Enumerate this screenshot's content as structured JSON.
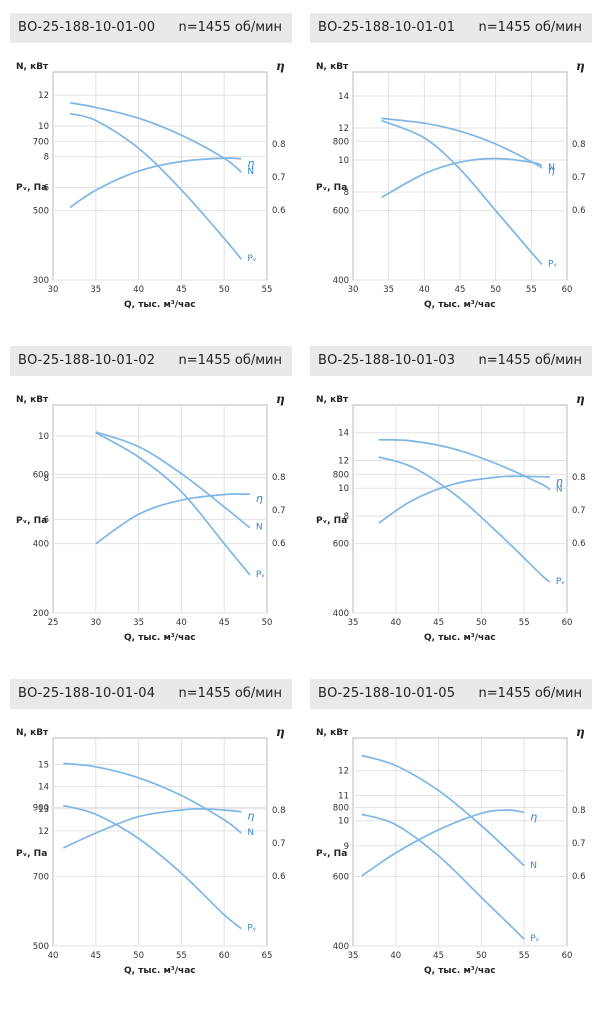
{
  "labels": {
    "n_axis": "N, кВт",
    "p_axis": "Pᵥ, Па",
    "q_axis": "Q, тыс. м³/час",
    "eta": "η",
    "curve_n": "N",
    "curve_eta": "η",
    "curve_p": "Pᵥ"
  },
  "colors": {
    "curve": "#7eb6e6",
    "grid": "#e2e2e2",
    "header_bg": "#e9e9e9"
  },
  "chart_data": [
    {
      "type": "line",
      "title": "ВО-25-188-10-01-00",
      "speed": "n=1455 об/мин",
      "x_ticks": [
        30,
        35,
        40,
        45,
        50,
        55
      ],
      "xlim": [
        30,
        55
      ],
      "n_ticks": [
        6,
        8,
        10,
        12
      ],
      "n_range": [
        0,
        13.5
      ],
      "p_ticks": [
        300,
        500,
        700
      ],
      "p_range": [
        300,
        900
      ],
      "eta_ticks": [
        0.6,
        0.7,
        0.8
      ],
      "eta_range": [
        0.6,
        0.8
      ],
      "series": [
        {
          "name": "N",
          "x": [
            32,
            35,
            40,
            45,
            50,
            52
          ],
          "y": [
            11.5,
            11.2,
            10.5,
            9.4,
            7.9,
            7.0
          ]
        },
        {
          "name": "η",
          "x": [
            32,
            35,
            40,
            45,
            50,
            52
          ],
          "y": [
            0.608,
            0.66,
            0.718,
            0.747,
            0.757,
            0.755
          ]
        },
        {
          "name": "Pᵥ",
          "x": [
            32,
            35,
            40,
            45,
            50,
            52
          ],
          "y": [
            780,
            760,
            680,
            560,
            420,
            360
          ]
        }
      ]
    },
    {
      "type": "line",
      "title": "ВО-25-188-10-01-01",
      "speed": "n=1455 об/мин",
      "x_ticks": [
        30,
        35,
        40,
        45,
        50,
        55,
        60
      ],
      "xlim": [
        30,
        60
      ],
      "n_ticks": [
        8,
        10,
        12,
        14
      ],
      "n_range": [
        2.5,
        15.5
      ],
      "p_ticks": [
        400,
        600,
        800
      ],
      "p_range": [
        400,
        1000
      ],
      "eta_ticks": [
        0.6,
        0.7,
        0.8
      ],
      "eta_range": [
        0.6,
        0.8
      ],
      "series": [
        {
          "name": "N",
          "x": [
            34,
            40,
            45,
            50,
            55,
            56.5
          ],
          "y": [
            12.6,
            12.3,
            11.8,
            11.0,
            9.9,
            9.5
          ]
        },
        {
          "name": "η",
          "x": [
            34,
            40,
            45,
            50,
            55,
            56.5
          ],
          "y": [
            0.638,
            0.71,
            0.745,
            0.756,
            0.745,
            0.735
          ]
        },
        {
          "name": "Pᵥ",
          "x": [
            34,
            40,
            45,
            50,
            55,
            56.5
          ],
          "y": [
            860,
            810,
            720,
            600,
            480,
            445
          ]
        }
      ]
    },
    {
      "type": "line",
      "title": "ВО-25-188-10-01-02",
      "speed": "n=1455 об/мин",
      "x_ticks": [
        25,
        30,
        35,
        40,
        45,
        50
      ],
      "xlim": [
        25,
        50
      ],
      "n_ticks": [
        6,
        8,
        10
      ],
      "n_range": [
        1.5,
        11.5
      ],
      "p_ticks": [
        200,
        400,
        600
      ],
      "p_range": [
        200,
        800
      ],
      "eta_ticks": [
        0.6,
        0.7,
        0.8
      ],
      "eta_range": [
        0.6,
        0.8
      ],
      "series": [
        {
          "name": "N",
          "x": [
            30,
            35,
            40,
            45,
            48
          ],
          "y": [
            10.2,
            9.5,
            8.2,
            6.6,
            5.6
          ]
        },
        {
          "name": "η",
          "x": [
            30,
            35,
            40,
            45,
            48
          ],
          "y": [
            0.598,
            0.687,
            0.73,
            0.747,
            0.748
          ]
        },
        {
          "name": "Pᵥ",
          "x": [
            30,
            35,
            40,
            45,
            48
          ],
          "y": [
            720,
            650,
            550,
            400,
            310
          ]
        }
      ]
    },
    {
      "type": "line",
      "title": "ВО-25-188-10-01-03",
      "speed": "n=1455 об/мин",
      "x_ticks": [
        35,
        40,
        45,
        50,
        55,
        60
      ],
      "xlim": [
        35,
        60
      ],
      "n_ticks": [
        8,
        10,
        12,
        14
      ],
      "n_range": [
        1,
        16
      ],
      "p_ticks": [
        400,
        600,
        800
      ],
      "p_range": [
        400,
        1000
      ],
      "eta_ticks": [
        0.6,
        0.7,
        0.8
      ],
      "eta_range": [
        0.6,
        0.8
      ],
      "series": [
        {
          "name": "N",
          "x": [
            38,
            42,
            47,
            52,
            57,
            58
          ],
          "y": [
            13.5,
            13.4,
            12.8,
            11.7,
            10.3,
            9.9
          ]
        },
        {
          "name": "η",
          "x": [
            38,
            42,
            47,
            52,
            55,
            58
          ],
          "y": [
            0.66,
            0.73,
            0.78,
            0.8,
            0.802,
            0.8
          ]
        },
        {
          "name": "Pᵥ",
          "x": [
            38,
            42,
            47,
            52,
            57,
            58
          ],
          "y": [
            850,
            820,
            740,
            630,
            510,
            490
          ]
        }
      ]
    },
    {
      "type": "line",
      "title": "ВО-25-188-10-01-04",
      "speed": "n=1455 об/мин",
      "x_ticks": [
        40,
        45,
        50,
        55,
        60,
        65
      ],
      "xlim": [
        40,
        65
      ],
      "n_ticks": [
        12,
        13,
        14,
        15
      ],
      "n_range": [
        6.8,
        16.2
      ],
      "p_ticks": [
        500,
        700,
        900
      ],
      "p_range": [
        500,
        1100
      ],
      "eta_ticks": [
        0.6,
        0.7,
        0.8
      ],
      "eta_range": [
        0.6,
        0.8
      ],
      "series": [
        {
          "name": "N",
          "x": [
            41.2,
            45,
            50,
            55,
            60,
            62
          ],
          "y": [
            15.05,
            14.9,
            14.4,
            13.6,
            12.5,
            11.9
          ]
        },
        {
          "name": "η",
          "x": [
            41.2,
            45,
            50,
            55,
            58,
            62
          ],
          "y": [
            0.685,
            0.73,
            0.78,
            0.8,
            0.803,
            0.795
          ]
        },
        {
          "name": "Pᵥ",
          "x": [
            41.2,
            45,
            50,
            55,
            60,
            62
          ],
          "y": [
            905,
            880,
            810,
            710,
            590,
            550
          ]
        }
      ]
    },
    {
      "type": "line",
      "title": "ВО-25-188-10-01-05",
      "speed": "n=1455 об/мин",
      "x_ticks": [
        35,
        40,
        45,
        50,
        55,
        60
      ],
      "xlim": [
        35,
        60
      ],
      "n_ticks": [
        9,
        10,
        11,
        12
      ],
      "n_range": [
        5,
        13.3
      ],
      "p_ticks": [
        400,
        600,
        800
      ],
      "p_range": [
        400,
        1000
      ],
      "eta_ticks": [
        0.6,
        0.7,
        0.8
      ],
      "eta_range": [
        0.6,
        0.8
      ],
      "series": [
        {
          "name": "N",
          "x": [
            36,
            40,
            45,
            50,
            55
          ],
          "y": [
            12.6,
            12.2,
            11.2,
            9.8,
            8.2
          ]
        },
        {
          "name": "η",
          "x": [
            36,
            40,
            45,
            50,
            53,
            55
          ],
          "y": [
            0.6,
            0.67,
            0.74,
            0.79,
            0.8,
            0.793
          ]
        },
        {
          "name": "Pᵥ",
          "x": [
            36,
            40,
            45,
            50,
            55
          ],
          "y": [
            780,
            750,
            660,
            540,
            420
          ]
        }
      ]
    }
  ]
}
